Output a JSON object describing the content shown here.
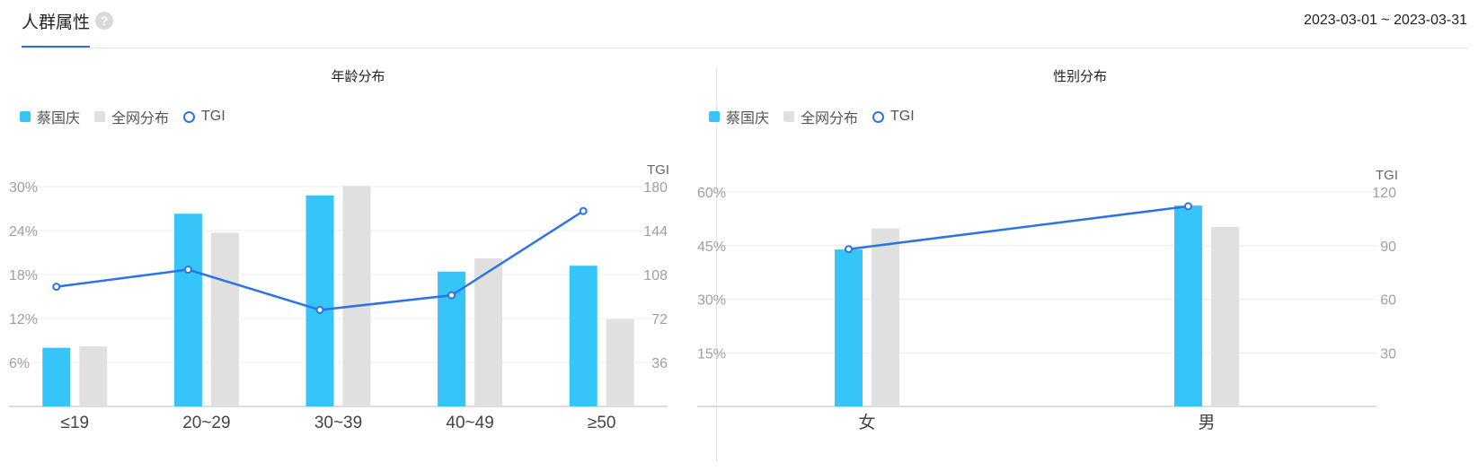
{
  "header": {
    "title": "人群属性",
    "help_icon": "question-icon",
    "date_range": "2023-03-01 ~ 2023-03-31"
  },
  "colors": {
    "bar_primary": "#35c5f8",
    "bar_secondary": "#e0e0e0",
    "line": "#2e73e6"
  },
  "legend": {
    "primary": "蔡国庆",
    "secondary": "全网分布",
    "tgi": "TGI"
  },
  "chart_data": [
    {
      "title": "年龄分布",
      "type": "bar",
      "categories": [
        "≤19",
        "20~29",
        "30~39",
        "40~49",
        "≥50"
      ],
      "series": [
        {
          "name": "蔡国庆",
          "type": "bar",
          "axis": "left",
          "values": [
            8.0,
            26.3,
            28.8,
            18.4,
            19.2
          ]
        },
        {
          "name": "全网分布",
          "type": "bar",
          "axis": "left",
          "values": [
            8.2,
            23.7,
            30.1,
            20.2,
            11.9
          ]
        },
        {
          "name": "TGI",
          "type": "line",
          "axis": "right",
          "values": [
            98,
            112,
            79,
            91,
            160
          ]
        }
      ],
      "y_left": {
        "ticks": [
          "30%",
          "24%",
          "18%",
          "12%",
          "6%"
        ],
        "tick_values": [
          30,
          24,
          18,
          12,
          6
        ],
        "range": [
          0,
          30
        ]
      },
      "y_right": {
        "label": "TGI",
        "ticks": [
          "180",
          "144",
          "108",
          "72",
          "36"
        ],
        "tick_values": [
          180,
          144,
          108,
          72,
          36
        ],
        "range": [
          0,
          180
        ]
      },
      "grid": true
    },
    {
      "title": "性别分布",
      "type": "bar",
      "categories": [
        "女",
        "男"
      ],
      "series": [
        {
          "name": "蔡国庆",
          "type": "bar",
          "axis": "left",
          "values": [
            43.9,
            56.2
          ]
        },
        {
          "name": "全网分布",
          "type": "bar",
          "axis": "left",
          "values": [
            49.8,
            50.2
          ]
        },
        {
          "name": "TGI",
          "type": "line",
          "axis": "right",
          "values": [
            88,
            112
          ]
        }
      ],
      "y_left": {
        "ticks": [
          "60%",
          "45%",
          "30%",
          "15%"
        ],
        "tick_values": [
          60,
          45,
          30,
          15
        ],
        "range": [
          0,
          60
        ]
      },
      "y_right": {
        "label": "TGI",
        "ticks": [
          "120",
          "90",
          "60",
          "30"
        ],
        "tick_values": [
          120,
          90,
          60,
          30
        ],
        "range": [
          0,
          120
        ]
      },
      "grid": true
    }
  ]
}
